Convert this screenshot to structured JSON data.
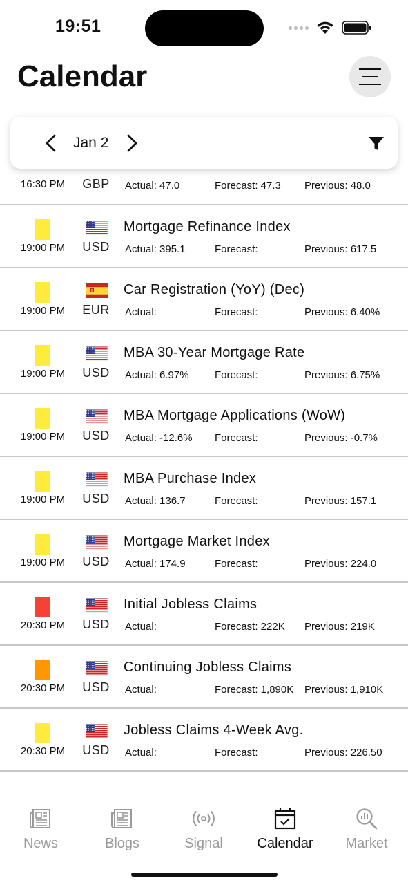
{
  "status_bar": {
    "time": "19:51"
  },
  "header": {
    "title": "Calendar"
  },
  "date_selector": {
    "date": "Jan 2"
  },
  "colors": {
    "high": "#f44336",
    "medium": "#ff9800",
    "low": "#ffeb3b"
  },
  "events": [
    {
      "impact": "",
      "time": "16:30 PM",
      "flag": "uk",
      "currency": "GBP",
      "name": "",
      "actual": "Actual: 47.0",
      "forecast": "Forecast: 47.3",
      "previous": "Previous:   48.0"
    },
    {
      "impact": "low",
      "time": "19:00 PM",
      "flag": "us",
      "currency": "USD",
      "name": "Mortgage Refinance Index",
      "actual": "Actual: 395.1",
      "forecast": "Forecast:",
      "previous": "Previous:   617.5"
    },
    {
      "impact": "low",
      "time": "19:00 PM",
      "flag": "es",
      "currency": "EUR",
      "name": "Car Registration (YoY) (Dec)",
      "actual": "Actual:",
      "forecast": "Forecast:",
      "previous": "Previous: 6.40%"
    },
    {
      "impact": "low",
      "time": "19:00 PM",
      "flag": "us",
      "currency": "USD",
      "name": "MBA 30-Year Mortgage Rate",
      "actual": "Actual: 6.97%",
      "forecast": "Forecast:",
      "previous": "Previous:  6.75%"
    },
    {
      "impact": "low",
      "time": "19:00 PM",
      "flag": "us",
      "currency": "USD",
      "name": "MBA Mortgage Applications (WoW)",
      "actual": "Actual: -12.6%",
      "forecast": "Forecast:",
      "previous": "Previous:  -0.7%"
    },
    {
      "impact": "low",
      "time": "19:00 PM",
      "flag": "us",
      "currency": "USD",
      "name": "MBA Purchase Index",
      "actual": "Actual: 136.7",
      "forecast": "Forecast:",
      "previous": "Previous:    157.1"
    },
    {
      "impact": "low",
      "time": "19:00 PM",
      "flag": "us",
      "currency": "USD",
      "name": "Mortgage Market Index",
      "actual": "Actual: 174.9",
      "forecast": "Forecast:",
      "previous": "Previous:  224.0"
    },
    {
      "impact": "high",
      "time": "20:30 PM",
      "flag": "us",
      "currency": "USD",
      "name": "Initial Jobless Claims",
      "actual": "Actual:",
      "forecast": "Forecast: 222K",
      "previous": "Previous:   219K"
    },
    {
      "impact": "medium",
      "time": "20:30 PM",
      "flag": "us",
      "currency": "USD",
      "name": "Continuing Jobless Claims",
      "actual": "Actual:",
      "forecast": "Forecast: 1,890K",
      "previous": "Previous: 1,910K"
    },
    {
      "impact": "low",
      "time": "20:30 PM",
      "flag": "us",
      "currency": "USD",
      "name": "Jobless Claims 4-Week Avg.",
      "actual": "Actual:",
      "forecast": "Forecast:",
      "previous": "Previous: 226.50"
    }
  ],
  "tabs": [
    {
      "label": "News",
      "icon": "newspaper-icon",
      "active": false
    },
    {
      "label": "Blogs",
      "icon": "newspaper-icon",
      "active": false
    },
    {
      "label": "Signal",
      "icon": "broadcast-icon",
      "active": false
    },
    {
      "label": "Calendar",
      "icon": "calendar-check-icon",
      "active": true
    },
    {
      "label": "Market",
      "icon": "chart-search-icon",
      "active": false
    }
  ]
}
